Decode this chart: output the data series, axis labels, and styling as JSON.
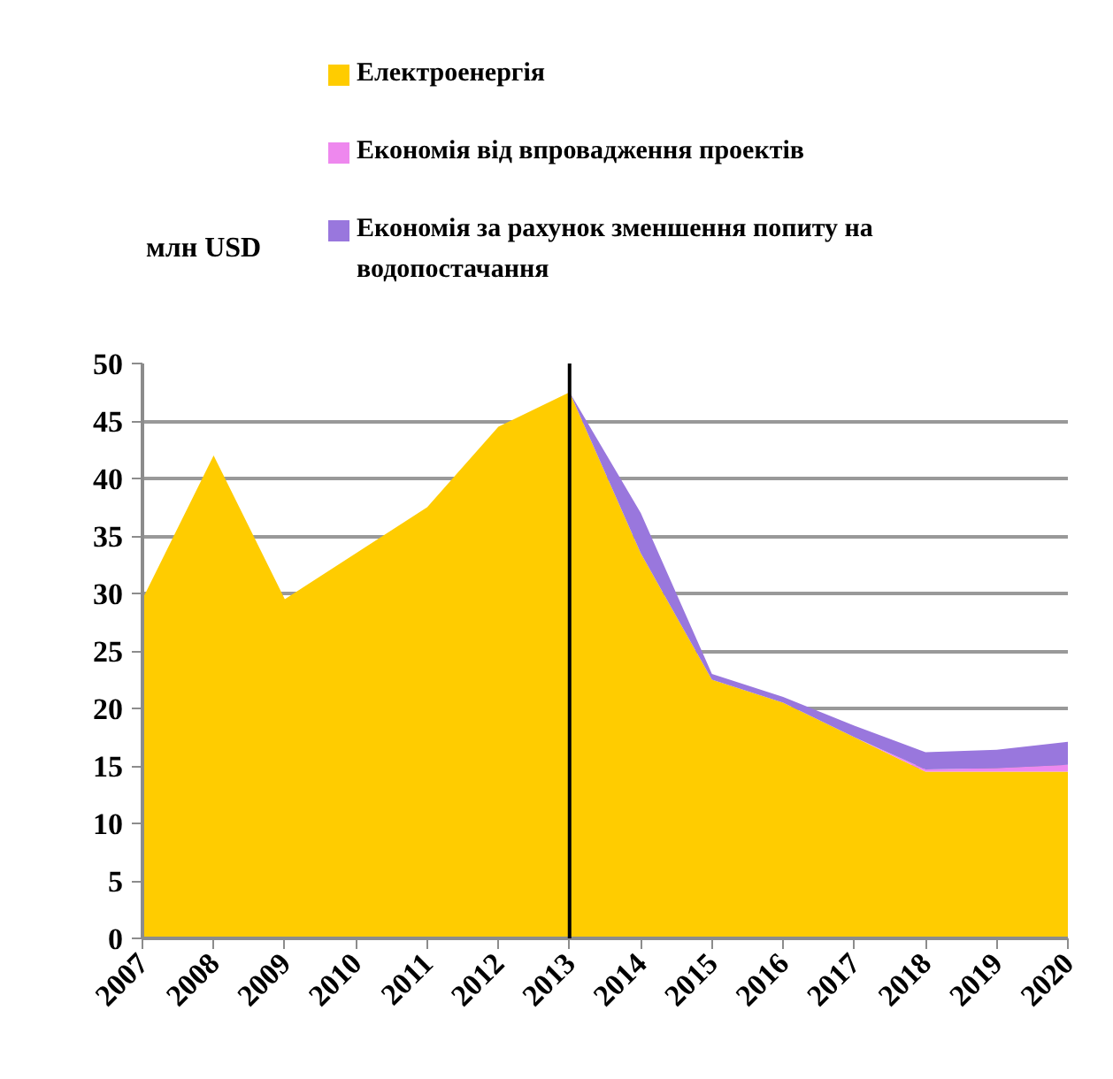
{
  "chart_data": {
    "type": "area",
    "stacked": true,
    "ylabel": "млн USD",
    "x": [
      2007,
      2008,
      2009,
      2010,
      2011,
      2012,
      2013,
      2014,
      2015,
      2016,
      2017,
      2018,
      2019,
      2020
    ],
    "xlim": [
      2007,
      2020
    ],
    "xticks": [
      2007,
      2008,
      2009,
      2010,
      2011,
      2012,
      2013,
      2014,
      2015,
      2016,
      2017,
      2018,
      2019,
      2020
    ],
    "ylim": [
      0,
      50
    ],
    "yticks": [
      0,
      5,
      10,
      15,
      20,
      25,
      30,
      35,
      40,
      45,
      50
    ],
    "grid": "y",
    "legend": "top",
    "series": [
      {
        "name": "Електроенергія",
        "color": "#ffcc00",
        "values": [
          29.5,
          42,
          29.5,
          33.5,
          37.5,
          44.5,
          47.5,
          33.5,
          22.5,
          20.5,
          17.5,
          14.5,
          14.5,
          14.5
        ]
      },
      {
        "name": "Економія від впровадження проектів",
        "color": "#ee88ee",
        "values": [
          0,
          0,
          0,
          0,
          0,
          0,
          0,
          0,
          0,
          0,
          0,
          0.2,
          0.3,
          0.6
        ]
      },
      {
        "name": "Економія за рахунок зменшення попиту на водопостачання",
        "color": "#9977dd",
        "values": [
          0,
          0,
          0,
          0,
          0,
          0,
          0,
          3.5,
          0.5,
          0.5,
          1,
          1.5,
          1.6,
          2
        ]
      }
    ],
    "ref_lines": [
      {
        "axis": "x",
        "value": 2013,
        "color": "#000000"
      }
    ]
  }
}
